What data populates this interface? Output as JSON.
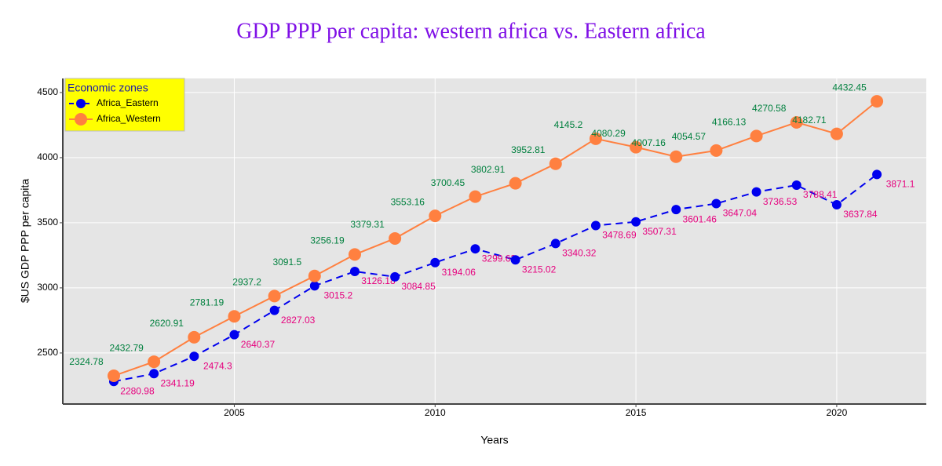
{
  "chart_data": {
    "type": "line",
    "title": "GDP PPP per capita: western africa vs. Eastern africa",
    "title_color": "#7f0fe6",
    "x_label": "Years",
    "y_label": "$US GDP PPP per capita",
    "x": [
      2002,
      2003,
      2004,
      2005,
      2006,
      2007,
      2008,
      2009,
      2010,
      2011,
      2012,
      2013,
      2014,
      2015,
      2016,
      2017,
      2018,
      2019,
      2020,
      2021
    ],
    "series": [
      {
        "name": "Africa_Eastern",
        "color": "#0000ee",
        "dash": "dash",
        "label_color": "#e6007e",
        "label_position": "bottom right",
        "values": [
          2280.98,
          2341.19,
          2474.3,
          2640.37,
          2827.03,
          3015.2,
          3126.18,
          3084.85,
          3194.06,
          3299.63,
          3215.02,
          3340.32,
          3478.69,
          3507.31,
          3601.46,
          3647.04,
          3736.53,
          3788.41,
          3637.84,
          3871.1
        ]
      },
      {
        "name": "Africa_Western",
        "color": "#ff8040",
        "dash": "solid",
        "label_color": "#00803e",
        "label_position": "top left",
        "values": [
          2324.78,
          2432.79,
          2620.91,
          2781.19,
          2937.2,
          3091.5,
          3256.19,
          3379.31,
          3553.16,
          3700.45,
          3802.91,
          3952.81,
          4145.2,
          4080.29,
          4007.16,
          4054.57,
          4166.13,
          4270.58,
          4182.71,
          4432.45
        ]
      }
    ],
    "xlim": [
      2000.73,
      2022.23
    ],
    "xticks": [
      2005,
      2010,
      2015,
      2020
    ],
    "ylim": [
      2108,
      4608
    ],
    "yticks": [
      2500,
      3000,
      3500,
      4000,
      4500
    ],
    "grid": true,
    "plot_background": "#e5e5e5",
    "legend_title": "Economic zones",
    "legend_position": "top left",
    "legend_background": "#ffff00"
  }
}
